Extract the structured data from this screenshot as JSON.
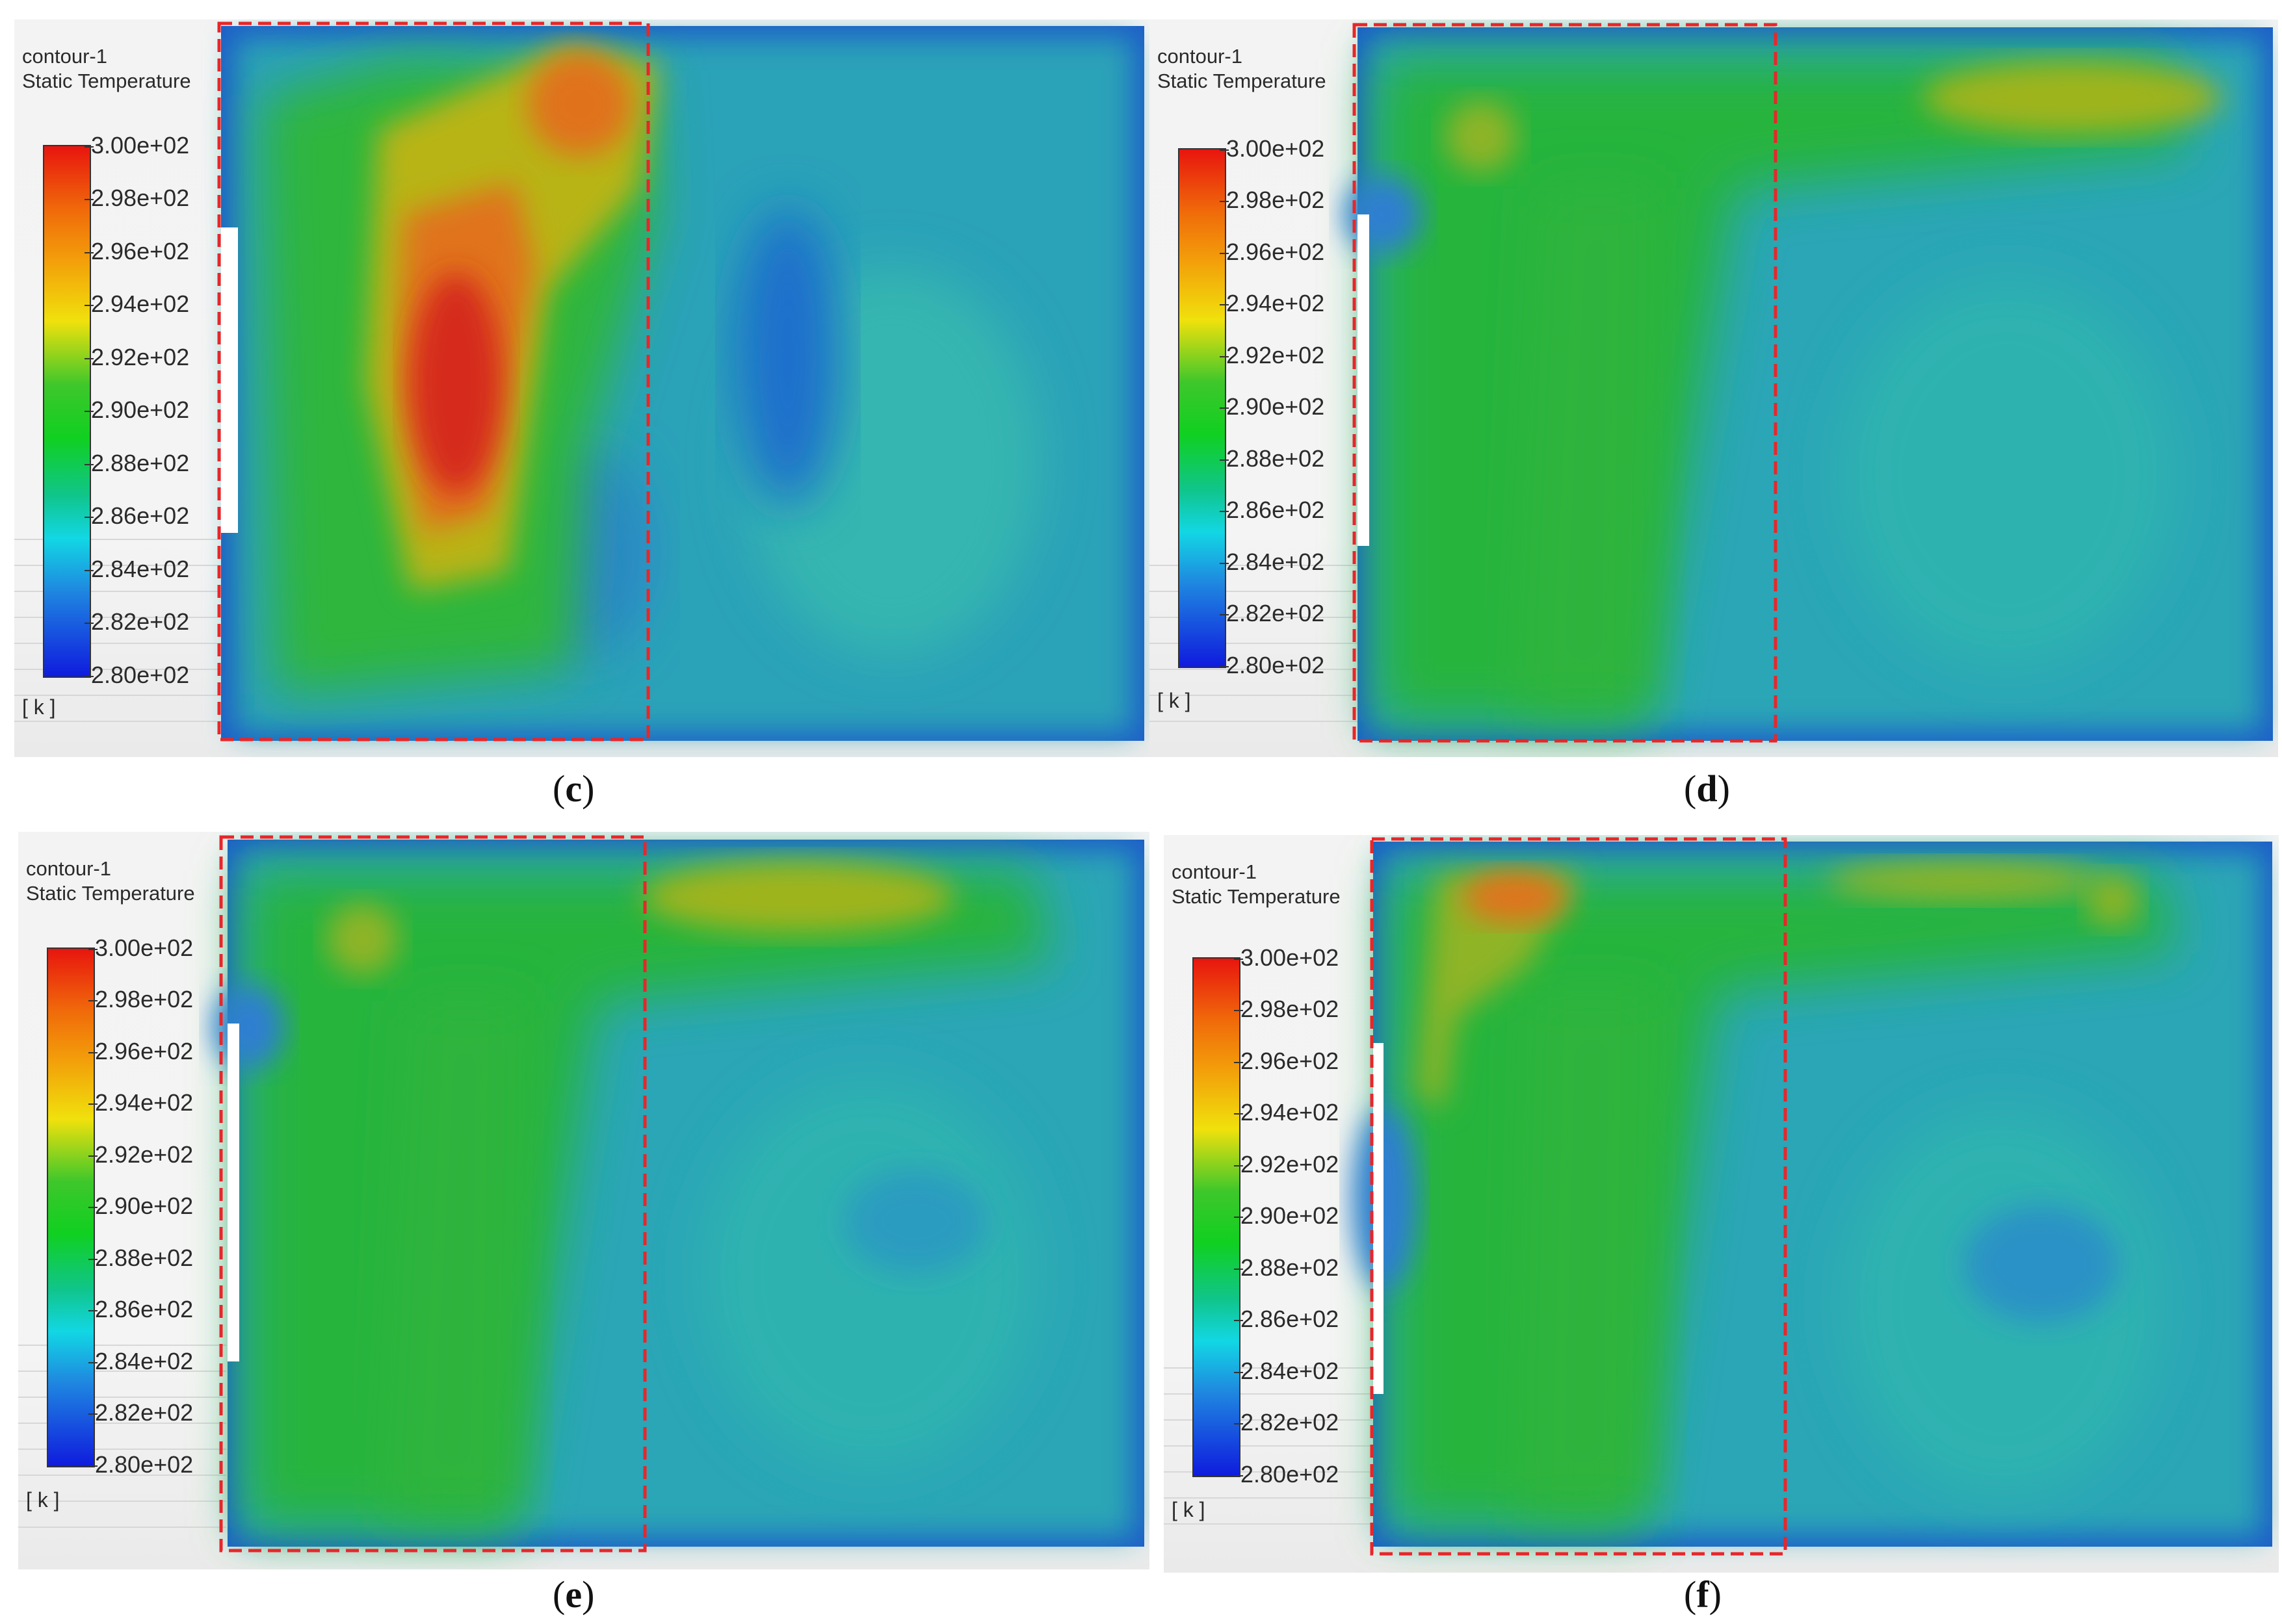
{
  "panels": [
    {
      "id": "c",
      "caption": "c",
      "legend_title_line1": "contour-1",
      "legend_title_line2": "Static Temperature",
      "unit": "[ k ]"
    },
    {
      "id": "d",
      "caption": "d",
      "legend_title_line1": "contour-1",
      "legend_title_line2": "Static Temperature",
      "unit": "[ k ]"
    },
    {
      "id": "e",
      "caption": "e",
      "legend_title_line1": "contour-1",
      "legend_title_line2": "Static Temperature",
      "unit": "[ k ]"
    },
    {
      "id": "f",
      "caption": "f",
      "legend_title_line1": "contour-1",
      "legend_title_line2": "Static Temperature",
      "unit": "[ k ]"
    }
  ],
  "colorbar": {
    "ticks": [
      "3.00e+02",
      "2.98e+02",
      "2.96e+02",
      "2.94e+02",
      "2.92e+02",
      "2.90e+02",
      "2.88e+02",
      "2.86e+02",
      "2.84e+02",
      "2.82e+02",
      "2.80e+02"
    ],
    "colors": [
      "#e8150e",
      "#f06a0a",
      "#f3a10a",
      "#f0e10c",
      "#3ec72b",
      "#10d020",
      "#10c58c",
      "#12d7e4",
      "#1f86e0",
      "#0f1bde"
    ]
  },
  "colors": {
    "highlight_box": "#e8262a",
    "cold_blue": "#1a5fc4",
    "cyan_field": "#2aa6b2",
    "green_field": "#27b33c",
    "hot_red": "#d9261a"
  }
}
